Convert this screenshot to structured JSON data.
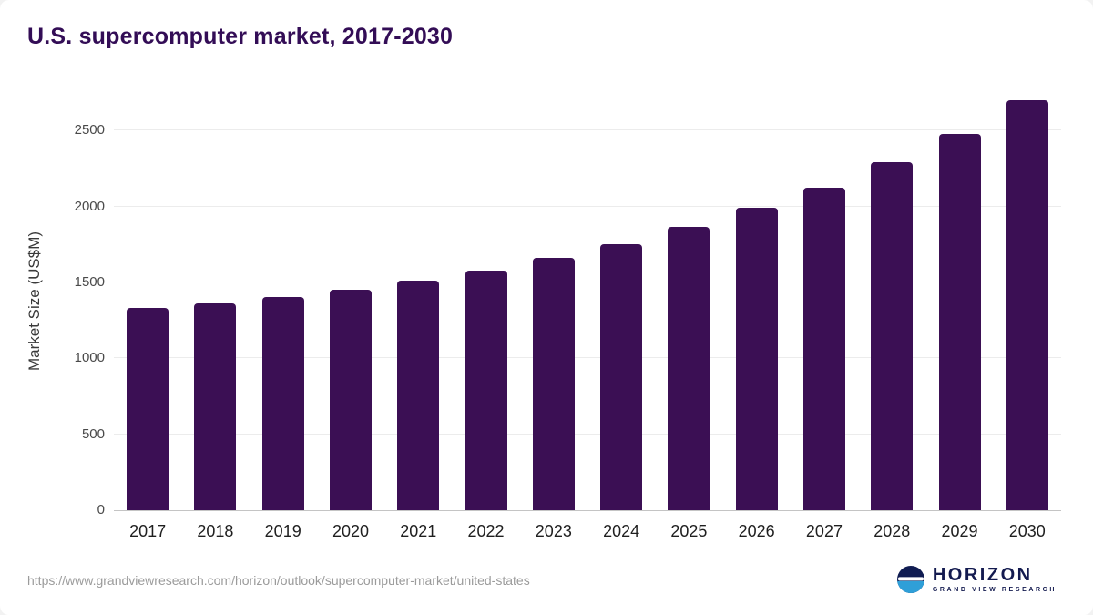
{
  "chart_data": {
    "type": "bar",
    "title": "U.S. supercomputer market, 2017-2030",
    "categories": [
      "2017",
      "2018",
      "2019",
      "2020",
      "2021",
      "2022",
      "2023",
      "2024",
      "2025",
      "2026",
      "2027",
      "2028",
      "2029",
      "2030"
    ],
    "values": [
      1330,
      1365,
      1405,
      1455,
      1510,
      1580,
      1660,
      1755,
      1865,
      1990,
      2125,
      2290,
      2480,
      2700
    ],
    "xlabel": "",
    "ylabel": "Market Size (US$M)",
    "ylim": [
      0,
      2760
    ],
    "yticks": [
      0,
      500,
      1000,
      1500,
      2000,
      2500
    ],
    "bar_color": "#3b0f54",
    "grid": "horizontal",
    "legend": "none"
  },
  "footer": {
    "source_url": "https://www.grandviewresearch.com/horizon/outlook/supercomputer-market/united-states",
    "logo": {
      "brand": "HORIZON",
      "tagline": "GRAND VIEW RESEARCH"
    }
  },
  "colors": {
    "title": "#330d56",
    "bar": "#3b0f54",
    "gridline": "#ececec",
    "axis_text": "#4a4a4a",
    "logo_navy": "#101c52",
    "logo_blue": "#2f9fd8"
  }
}
